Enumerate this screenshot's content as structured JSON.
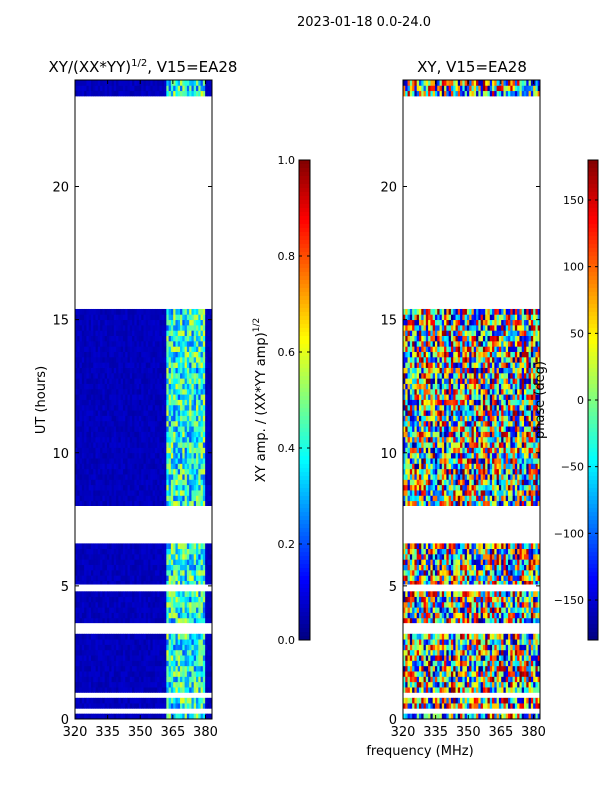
{
  "suptitle": "2023-01-18 0.0-24.0",
  "shared_xlabel": "frequency (MHz)",
  "colors": {
    "missing_data": "#ffffff",
    "low_amplitude": "#00007f"
  },
  "chart_data": [
    {
      "type": "heatmap",
      "id": "amp",
      "title_main": "XY/(XX*YY)",
      "title_sup": "1/2",
      "title_rest": ", V15=EA28",
      "xlabel": "",
      "ylabel": "UT (hours)",
      "xlim": [
        320,
        383
      ],
      "ylim": [
        0,
        24
      ],
      "xticks": [
        320,
        335,
        350,
        365,
        380
      ],
      "yticks": [
        0,
        5,
        10,
        15,
        20
      ],
      "colorbar": {
        "label_main": "XY amp. / (XX*YY amp)",
        "label_sup": "1/2",
        "range": [
          0.0,
          1.0
        ],
        "ticks": [
          "0.0",
          "0.2",
          "0.4",
          "0.6",
          "0.8",
          "1.0"
        ],
        "colormap": "jet"
      },
      "data_gaps_hours": [
        [
          0.3,
          0.38
        ],
        [
          0.8,
          0.95
        ],
        [
          3.3,
          3.6
        ],
        [
          4.8,
          5.05
        ],
        [
          6.6,
          8.0
        ],
        [
          15.5,
          23.3
        ]
      ],
      "note": "mostly ~0.05 below 362 MHz; values 0.2-0.6 between 362 and 380 MHz"
    },
    {
      "type": "heatmap",
      "id": "phase",
      "title_main": "XY, V15=EA28",
      "xlabel": "frequency (MHz)",
      "ylabel": "",
      "xlim": [
        320,
        383
      ],
      "ylim": [
        0,
        24
      ],
      "xticks": [
        320,
        335,
        350,
        365,
        380
      ],
      "yticks": [
        0,
        5,
        10,
        15,
        20
      ],
      "colorbar": {
        "label_main": "phase (deg)",
        "range": [
          -180,
          180
        ],
        "ticks": [
          "−150",
          "−100",
          "−50",
          "0",
          "50",
          "100",
          "150"
        ],
        "colormap": "jet"
      },
      "data_gaps_hours": [
        [
          0.3,
          0.38
        ],
        [
          0.8,
          0.95
        ],
        [
          3.3,
          3.6
        ],
        [
          4.8,
          5.05
        ],
        [
          6.6,
          8.0
        ],
        [
          15.5,
          23.3
        ]
      ],
      "note": "phase noisy across full range -180..180 deg"
    }
  ]
}
